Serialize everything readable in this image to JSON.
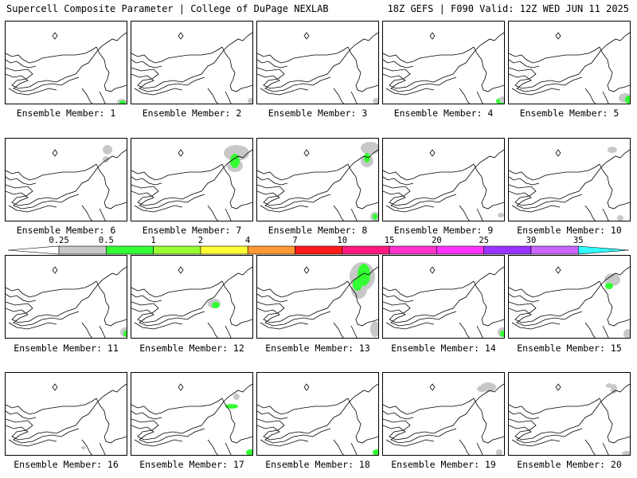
{
  "header": {
    "left": "Supercell Composite Parameter | College of DuPage NEXLAB",
    "right": "18Z GEFS | F090 Valid: 12Z WED JUN 11 2025"
  },
  "colorbar": {
    "labels": [
      "0.25",
      "0.5",
      "1",
      "2",
      "4",
      "7",
      "10",
      "15",
      "20",
      "25",
      "30",
      "35"
    ],
    "colors": [
      "#c8c8c8",
      "#33ff33",
      "#99ff33",
      "#ffff33",
      "#ff9933",
      "#ff1a1a",
      "#ff1a80",
      "#ff33cc",
      "#ff33ff",
      "#9933ff",
      "#cc66ff",
      "#33ffff"
    ]
  },
  "panels": [
    {
      "label": "Ensemble Member: 1"
    },
    {
      "label": "Ensemble Member: 2"
    },
    {
      "label": "Ensemble Member: 3"
    },
    {
      "label": "Ensemble Member: 4"
    },
    {
      "label": "Ensemble Member: 5"
    },
    {
      "label": "Ensemble Member: 6"
    },
    {
      "label": "Ensemble Member: 7"
    },
    {
      "label": "Ensemble Member: 8"
    },
    {
      "label": "Ensemble Member: 9"
    },
    {
      "label": "Ensemble Member: 10"
    },
    {
      "label": "Ensemble Member: 11"
    },
    {
      "label": "Ensemble Member: 12"
    },
    {
      "label": "Ensemble Member: 13"
    },
    {
      "label": "Ensemble Member: 14"
    },
    {
      "label": "Ensemble Member: 15"
    },
    {
      "label": "Ensemble Member: 16"
    },
    {
      "label": "Ensemble Member: 17"
    },
    {
      "label": "Ensemble Member: 18"
    },
    {
      "label": "Ensemble Member: 19"
    },
    {
      "label": "Ensemble Member: 20"
    }
  ]
}
